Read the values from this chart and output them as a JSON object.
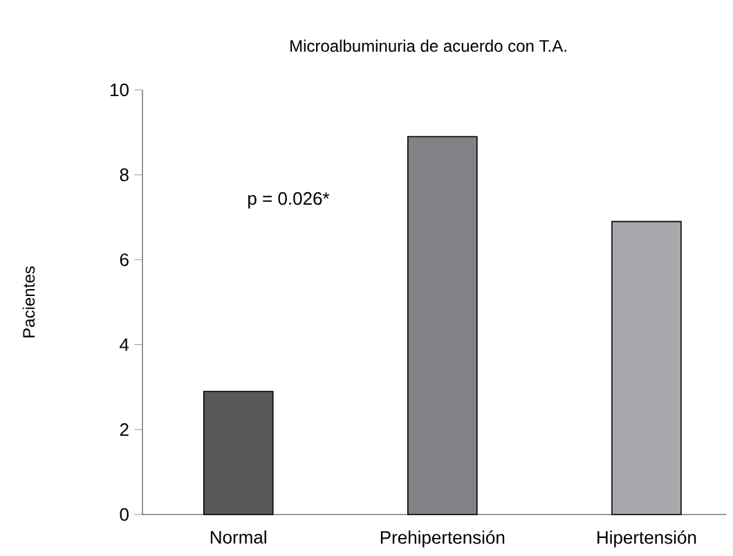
{
  "chart_data": {
    "type": "bar",
    "title": "Microalbuminuria de acuerdo con T.A.",
    "ylabel": "Pacientes",
    "categories": [
      "Normal",
      "Prehipertensión",
      "Hipertensión"
    ],
    "values": [
      2.9,
      8.9,
      6.9
    ],
    "colors": [
      "#58595b",
      "#808285",
      "#a7a9ac"
    ],
    "ylim": [
      0,
      10
    ],
    "yticks": [
      0,
      2,
      4,
      6,
      8,
      10
    ],
    "annotations": [
      "p = 0.026*"
    ]
  }
}
